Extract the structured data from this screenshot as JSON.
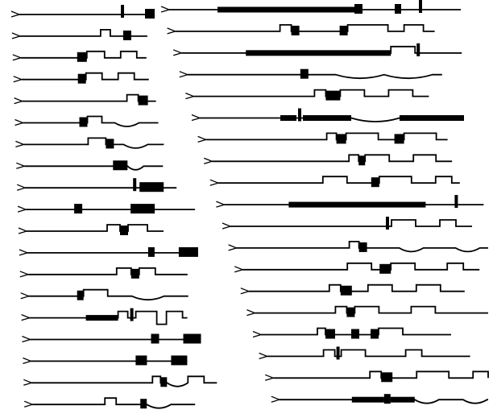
{
  "colors": {
    "ink": "#000000",
    "paper": "#ffffff"
  },
  "columns": [
    {
      "name": "left",
      "traces": [
        {
          "segments": [
            [
              "L",
              120
            ],
            [
              "S",
              16
            ],
            [
              "L",
              20
            ],
            [
              "B",
              12
            ]
          ]
        },
        {
          "segments": [
            [
              "L",
              100
            ],
            [
              "U",
              12
            ],
            [
              "L",
              16
            ],
            [
              "B",
              10
            ],
            [
              "L",
              20
            ]
          ]
        },
        {
          "segments": [
            [
              "L",
              70
            ],
            [
              "B",
              12
            ],
            [
              "U",
              22
            ],
            [
              "L",
              20
            ],
            [
              "U",
              20
            ],
            [
              "L",
              12
            ]
          ]
        },
        {
          "segments": [
            [
              "L",
              70
            ],
            [
              "B",
              10
            ],
            [
              "U",
              20
            ],
            [
              "L",
              20
            ],
            [
              "U",
              20
            ],
            [
              "L",
              18
            ]
          ]
        },
        {
          "segments": [
            [
              "L",
              130
            ],
            [
              "U",
              14
            ],
            [
              "B",
              12
            ],
            [
              "L",
              10
            ]
          ]
        },
        {
          "segments": [
            [
              "L",
              70
            ],
            [
              "B",
              10
            ],
            [
              "U",
              18
            ],
            [
              "L",
              16
            ],
            [
              "V",
              30
            ],
            [
              "L",
              24
            ]
          ]
        },
        {
          "segments": [
            [
              "L",
              80
            ],
            [
              "U",
              22
            ],
            [
              "B",
              10
            ],
            [
              "L",
              12
            ],
            [
              "V",
              30
            ],
            [
              "L",
              20
            ]
          ]
        },
        {
          "segments": [
            [
              "L",
              110
            ],
            [
              "B",
              18
            ],
            [
              "V",
              20
            ],
            [
              "L",
              24
            ]
          ]
        },
        {
          "segments": [
            [
              "L",
              130
            ],
            [
              "S",
              12
            ],
            [
              "B",
              30
            ],
            [
              "L",
              16
            ]
          ]
        },
        {
          "segments": [
            [
              "L",
              60
            ],
            [
              "B",
              10
            ],
            [
              "L",
              60
            ],
            [
              "B",
              30
            ],
            [
              "L",
              50
            ]
          ]
        },
        {
          "segments": [
            [
              "L",
              100
            ],
            [
              "U",
              16
            ],
            [
              "B",
              10
            ],
            [
              "U",
              24
            ],
            [
              "L",
              20
            ]
          ]
        },
        {
          "segments": [
            [
              "L",
              150
            ],
            [
              "B",
              8
            ],
            [
              "L",
              30
            ],
            [
              "B",
              24
            ]
          ]
        },
        {
          "segments": [
            [
              "L",
              110
            ],
            [
              "U",
              18
            ],
            [
              "B",
              10
            ],
            [
              "U",
              20
            ],
            [
              "L",
              40
            ]
          ]
        },
        {
          "segments": [
            [
              "L",
              60
            ],
            [
              "B",
              8
            ],
            [
              "U",
              30
            ],
            [
              "L",
              30
            ],
            [
              "V",
              40
            ],
            [
              "L",
              30
            ]
          ]
        },
        {
          "segments": [
            [
              "L",
              70
            ],
            [
              "T",
              40
            ],
            [
              "U",
              12
            ],
            [
              "S",
              10
            ],
            [
              "U",
              26
            ],
            [
              "D",
              12
            ],
            [
              "U",
              20
            ],
            [
              "L",
              6
            ]
          ]
        },
        {
          "segments": [
            [
              "L",
              150
            ],
            [
              "B",
              10
            ],
            [
              "L",
              30
            ],
            [
              "B",
              22
            ]
          ]
        },
        {
          "segments": [
            [
              "L",
              130
            ],
            [
              "B",
              14
            ],
            [
              "L",
              30
            ],
            [
              "B",
              20
            ]
          ]
        },
        {
          "segments": [
            [
              "L",
              150
            ],
            [
              "U",
              10
            ],
            [
              "B",
              8
            ],
            [
              "V",
              26
            ],
            [
              "U",
              20
            ],
            [
              "L",
              16
            ]
          ]
        },
        {
          "segments": [
            [
              "L",
              90
            ],
            [
              "U",
              14
            ],
            [
              "L",
              30
            ],
            [
              "B",
              8
            ],
            [
              "V",
              30
            ],
            [
              "L",
              30
            ]
          ]
        },
        {
          "segments": [
            [
              "L",
              60
            ],
            [
              "B",
              10
            ],
            [
              "U",
              30
            ],
            [
              "L",
              30
            ],
            [
              "U",
              26
            ],
            [
              "L",
              20
            ],
            [
              "U",
              20
            ],
            [
              "L",
              10
            ]
          ]
        }
      ]
    },
    {
      "name": "right",
      "traces": [
        {
          "segments": [
            [
              "L",
              60
            ],
            [
              "T",
              170
            ],
            [
              "B",
              10
            ],
            [
              "L",
              40
            ],
            [
              "B",
              8
            ],
            [
              "L",
              20
            ],
            [
              "S",
              8
            ],
            [
              "L",
              46
            ]
          ]
        },
        {
          "segments": [
            [
              "L",
              130
            ],
            [
              "U",
              14
            ],
            [
              "B",
              10
            ],
            [
              "L",
              50
            ],
            [
              "B",
              10
            ],
            [
              "U",
              50
            ],
            [
              "L",
              20
            ],
            [
              "U",
              24
            ],
            [
              "L",
              14
            ]
          ]
        },
        {
          "segments": [
            [
              "L",
              80
            ],
            [
              "T",
              180
            ],
            [
              "U",
              30
            ],
            [
              "S",
              8
            ],
            [
              "L",
              50
            ]
          ]
        },
        {
          "segments": [
            [
              "L",
              140
            ],
            [
              "B",
              10
            ],
            [
              "L",
              34
            ],
            [
              "V",
              60
            ],
            [
              "V",
              60
            ],
            [
              "L",
              12
            ]
          ]
        },
        {
          "segments": [
            [
              "L",
              150
            ],
            [
              "U",
              14
            ],
            [
              "B",
              18
            ],
            [
              "U",
              30
            ],
            [
              "L",
              30
            ],
            [
              "U",
              30
            ],
            [
              "L",
              20
            ]
          ]
        },
        {
          "segments": [
            [
              "L",
              100
            ],
            [
              "T",
              20
            ],
            [
              "S",
              8
            ],
            [
              "T",
              60
            ],
            [
              "V",
              60
            ],
            [
              "T",
              80
            ]
          ]
        },
        {
          "segments": [
            [
              "L",
              150
            ],
            [
              "U",
              12
            ],
            [
              "B",
              12
            ],
            [
              "U",
              40
            ],
            [
              "L",
              20
            ],
            [
              "B",
              12
            ],
            [
              "U",
              40
            ],
            [
              "L",
              14
            ]
          ]
        },
        {
          "segments": [
            [
              "L",
              170
            ],
            [
              "U",
              12
            ],
            [
              "B",
              8
            ],
            [
              "U",
              30
            ],
            [
              "L",
              30
            ],
            [
              "U",
              28
            ],
            [
              "L",
              20
            ]
          ]
        },
        {
          "segments": [
            [
              "L",
              130
            ],
            [
              "U",
              30
            ],
            [
              "L",
              30
            ],
            [
              "B",
              10
            ],
            [
              "U",
              40
            ],
            [
              "L",
              30
            ],
            [
              "U",
              20
            ],
            [
              "L",
              10
            ]
          ]
        },
        {
          "segments": [
            [
              "L",
              80
            ],
            [
              "T",
              170
            ],
            [
              "L",
              34
            ],
            [
              "S",
              8
            ],
            [
              "L",
              30
            ]
          ]
        },
        {
          "segments": [
            [
              "L",
              190
            ],
            [
              "S",
              10
            ],
            [
              "U",
              30
            ],
            [
              "L",
              30
            ],
            [
              "U",
              20
            ],
            [
              "L",
              20
            ]
          ]
        },
        {
          "segments": [
            [
              "L",
              140
            ],
            [
              "U",
              12
            ],
            [
              "B",
              10
            ],
            [
              "L",
              40
            ],
            [
              "V",
              30
            ],
            [
              "L",
              40
            ],
            [
              "V",
              30
            ],
            [
              "L",
              20
            ]
          ]
        },
        {
          "segments": [
            [
              "L",
              130
            ],
            [
              "U",
              30
            ],
            [
              "L",
              10
            ],
            [
              "B",
              14
            ],
            [
              "U",
              30
            ],
            [
              "L",
              40
            ],
            [
              "U",
              20
            ],
            [
              "L",
              20
            ]
          ]
        },
        {
          "segments": [
            [
              "L",
              100
            ],
            [
              "U",
              14
            ],
            [
              "B",
              14
            ],
            [
              "L",
              20
            ],
            [
              "U",
              30
            ],
            [
              "L",
              30
            ],
            [
              "U",
              30
            ],
            [
              "L",
              30
            ]
          ]
        },
        {
          "segments": [
            [
              "L",
              100
            ],
            [
              "U",
              14
            ],
            [
              "B",
              10
            ],
            [
              "U",
              30
            ],
            [
              "L",
              40
            ],
            [
              "U",
              30
            ],
            [
              "L",
              40
            ],
            [
              "L",
              30
            ]
          ]
        },
        {
          "segments": [
            [
              "L",
              70
            ],
            [
              "U",
              10
            ],
            [
              "B",
              12
            ],
            [
              "L",
              20
            ],
            [
              "B",
              10
            ],
            [
              "L",
              14
            ],
            [
              "B",
              10
            ],
            [
              "U",
              30
            ],
            [
              "L",
              40
            ],
            [
              "L",
              20
            ]
          ]
        },
        {
          "segments": [
            [
              "L",
              70
            ],
            [
              "U",
              14
            ],
            [
              "S",
              8
            ],
            [
              "U",
              30
            ],
            [
              "L",
              50
            ],
            [
              "U",
              20
            ],
            [
              "L",
              40
            ],
            [
              "L",
              20
            ]
          ]
        },
        {
          "segments": [
            [
              "L",
              120
            ],
            [
              "U",
              14
            ],
            [
              "B",
              14
            ],
            [
              "L",
              30
            ],
            [
              "U",
              40
            ],
            [
              "L",
              30
            ],
            [
              "U",
              30
            ],
            [
              "L",
              20
            ]
          ]
        },
        {
          "segments": [
            [
              "L",
              90
            ],
            [
              "T",
              40
            ],
            [
              "B",
              8
            ],
            [
              "T",
              30
            ],
            [
              "V",
              30
            ],
            [
              "L",
              30
            ],
            [
              "V",
              30
            ],
            [
              "L",
              10
            ]
          ]
        },
        {
          "segments": [
            [
              "L",
              70
            ],
            [
              "U",
              14
            ],
            [
              "L",
              20
            ],
            [
              "B",
              10
            ],
            [
              "U",
              20
            ],
            [
              "L",
              20
            ],
            [
              "B",
              10
            ],
            [
              "U",
              20
            ],
            [
              "L",
              10
            ],
            [
              "B",
              40
            ]
          ]
        }
      ]
    }
  ]
}
